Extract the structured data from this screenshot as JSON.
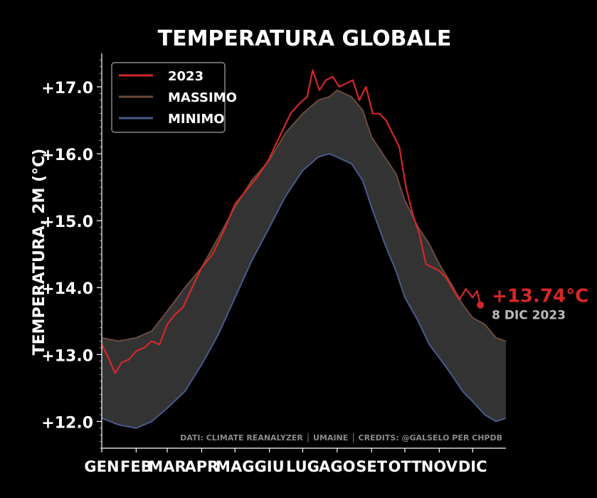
{
  "chart_data": {
    "type": "area",
    "title": "TEMPERATURA GLOBALE",
    "xlabel": "",
    "ylabel": "TEMPERATURA, 2M (°C)",
    "ylim": [
      11.6,
      17.5
    ],
    "xlim": [
      0,
      364
    ],
    "y_ticks": [
      {
        "value": 12.0,
        "label": "+12.0"
      },
      {
        "value": 13.0,
        "label": "+13.0"
      },
      {
        "value": 14.0,
        "label": "+14.0"
      },
      {
        "value": 15.0,
        "label": "+15.0"
      },
      {
        "value": 16.0,
        "label": "+16.0"
      },
      {
        "value": 17.0,
        "label": "+17.0"
      }
    ],
    "x_ticks": [
      {
        "value": 0,
        "label": "GEN"
      },
      {
        "value": 31,
        "label": "FEB"
      },
      {
        "value": 59,
        "label": "MAR"
      },
      {
        "value": 90,
        "label": "APR"
      },
      {
        "value": 120,
        "label": "MAG"
      },
      {
        "value": 151,
        "label": "GIU"
      },
      {
        "value": 181,
        "label": "LUG"
      },
      {
        "value": 212,
        "label": "AGO"
      },
      {
        "value": 243,
        "label": "SET"
      },
      {
        "value": 273,
        "label": "OTT"
      },
      {
        "value": 304,
        "label": "NOV"
      },
      {
        "value": 334,
        "label": "DIC"
      }
    ],
    "legend": {
      "position": "top-left"
    },
    "series": [
      {
        "name": "2023",
        "color": "#d62728",
        "x": [
          0,
          6,
          12,
          18,
          24,
          31,
          38,
          45,
          52,
          59,
          66,
          73,
          80,
          90,
          100,
          110,
          120,
          130,
          140,
          150,
          160,
          170,
          178,
          185,
          190,
          196,
          202,
          208,
          214,
          220,
          226,
          232,
          238,
          244,
          250,
          256,
          262,
          268,
          274,
          280,
          286,
          292,
          298,
          304,
          310,
          316,
          322,
          328,
          334,
          338,
          341
        ],
        "values": [
          13.15,
          12.95,
          12.72,
          12.88,
          12.92,
          13.05,
          13.1,
          13.2,
          13.15,
          13.45,
          13.6,
          13.7,
          13.95,
          14.3,
          14.5,
          14.85,
          15.25,
          15.45,
          15.65,
          15.9,
          16.25,
          16.6,
          16.75,
          16.85,
          17.25,
          16.95,
          17.1,
          17.15,
          17.0,
          17.05,
          17.1,
          16.8,
          17.0,
          16.6,
          16.6,
          16.5,
          16.3,
          16.1,
          15.5,
          15.1,
          14.8,
          14.35,
          14.3,
          14.25,
          14.15,
          13.98,
          13.82,
          13.98,
          13.85,
          13.95,
          13.74
        ]
      },
      {
        "name": "MASSIMO",
        "color": "#6b4a3c",
        "x": [
          0,
          15,
          31,
          45,
          59,
          75,
          90,
          105,
          120,
          135,
          151,
          165,
          181,
          195,
          205,
          212,
          225,
          235,
          243,
          255,
          265,
          273,
          285,
          295,
          304,
          315,
          325,
          334,
          345,
          355,
          364
        ],
        "values": [
          13.25,
          13.2,
          13.25,
          13.35,
          13.65,
          14.0,
          14.3,
          14.75,
          15.2,
          15.6,
          15.9,
          16.3,
          16.6,
          16.8,
          16.85,
          16.95,
          16.85,
          16.65,
          16.25,
          15.95,
          15.7,
          15.3,
          14.9,
          14.65,
          14.35,
          14.05,
          13.75,
          13.55,
          13.45,
          13.25,
          13.2
        ]
      },
      {
        "name": "MINIMO",
        "color": "#4a5a8a",
        "x": [
          0,
          15,
          31,
          45,
          59,
          75,
          90,
          105,
          120,
          135,
          151,
          165,
          181,
          195,
          205,
          212,
          225,
          235,
          243,
          255,
          265,
          273,
          285,
          295,
          304,
          315,
          325,
          334,
          345,
          355,
          364
        ],
        "values": [
          12.05,
          11.95,
          11.9,
          12.0,
          12.2,
          12.45,
          12.85,
          13.3,
          13.85,
          14.4,
          14.9,
          15.35,
          15.75,
          15.95,
          16.0,
          15.95,
          15.85,
          15.6,
          15.2,
          14.65,
          14.25,
          13.85,
          13.5,
          13.15,
          12.95,
          12.7,
          12.45,
          12.3,
          12.1,
          12.0,
          12.05
        ]
      }
    ],
    "annotation": {
      "value_label": "+13.74°C",
      "date_label": "8 DIC 2023",
      "x": 341,
      "y": 13.74
    },
    "credits": "DATI: CLIMATE REANALYZER │ UMAINE  │ CREDITS: @GALSELO PER CHPDB"
  }
}
